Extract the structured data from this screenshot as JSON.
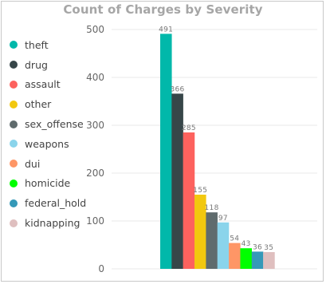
{
  "chart_data": {
    "type": "bar",
    "title": "Count of Charges by Severity",
    "categories": [
      "theft",
      "drug",
      "assault",
      "other",
      "sex_offense",
      "weapons",
      "dui",
      "homicide",
      "federal_hold",
      "kidnapping"
    ],
    "values": [
      491,
      366,
      285,
      155,
      118,
      97,
      54,
      43,
      36,
      35
    ],
    "data_labels": [
      "491",
      "366",
      "285",
      "155",
      "118",
      "97",
      "54",
      "43",
      "36",
      "35"
    ],
    "colors": [
      "#01B8AA",
      "#374649",
      "#FD625E",
      "#F2C80F",
      "#5F6B6D",
      "#8AD4EB",
      "#FE9666",
      "#00FF00",
      "#3599B8",
      "#DFBFBF"
    ],
    "yticks": [
      "0",
      "100",
      "200",
      "300",
      "400",
      "500"
    ],
    "ylim": [
      0,
      520
    ],
    "grid": true,
    "legend_position": "left"
  }
}
